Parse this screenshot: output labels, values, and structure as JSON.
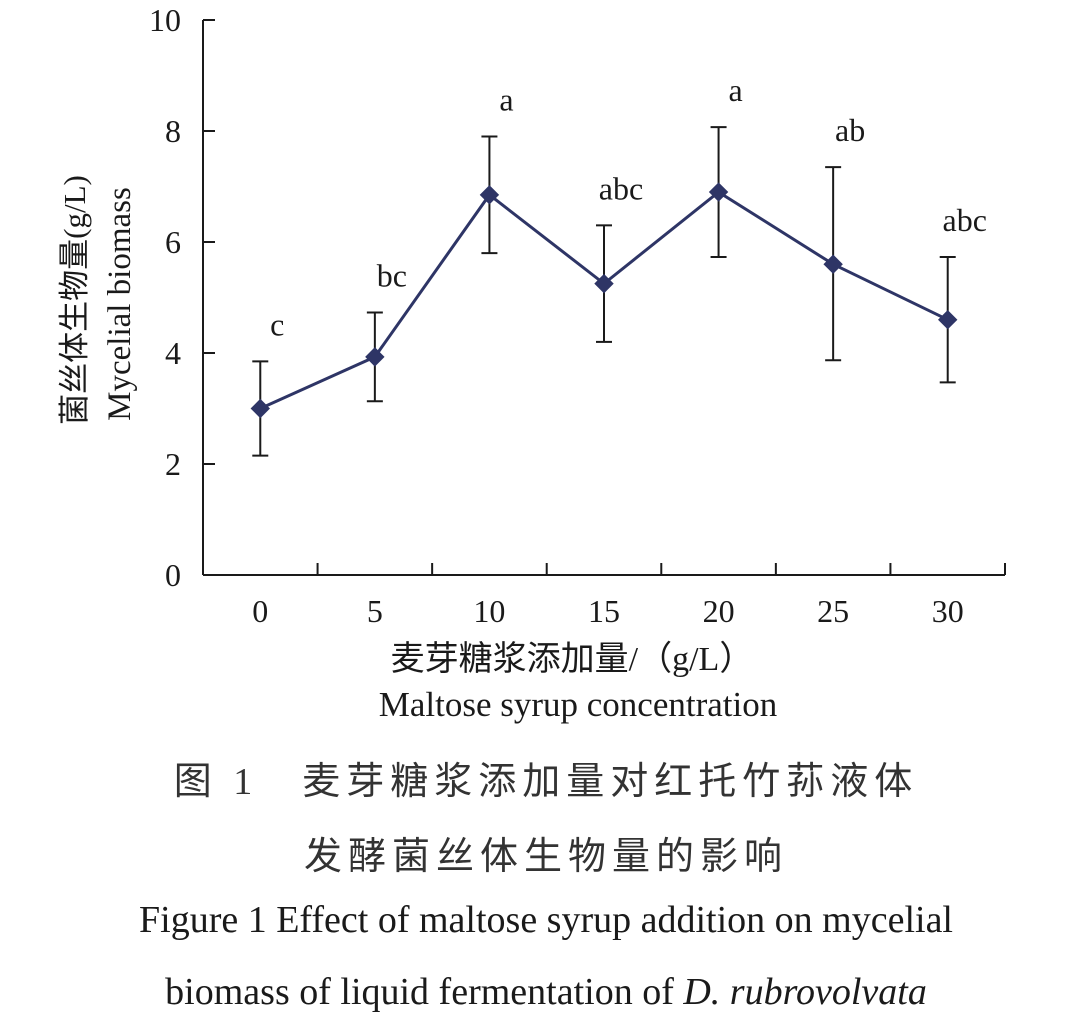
{
  "chart_data": {
    "type": "line",
    "x": [
      0,
      5,
      10,
      15,
      20,
      25,
      30
    ],
    "y": [
      3.0,
      3.93,
      6.85,
      5.25,
      6.9,
      5.6,
      4.6
    ],
    "error_upper": [
      3.85,
      4.73,
      7.9,
      6.3,
      8.07,
      7.35,
      5.73
    ],
    "error_lower": [
      2.15,
      3.13,
      5.8,
      4.2,
      5.73,
      3.87,
      3.47
    ],
    "significance_labels": [
      "c",
      "bc",
      "a",
      "abc",
      "a",
      "ab",
      "abc"
    ],
    "ylabel_zh": "菌丝体生物量(g/L)",
    "ylabel_en": "Mycelial biomass",
    "xlabel_zh": "麦芽糖浆添加量/（g/L）",
    "xlabel_en": "Maltose syrup concentration",
    "yticks": [
      "0",
      "2",
      "4",
      "6",
      "8",
      "10"
    ],
    "xticks": [
      "0",
      "5",
      "10",
      "15",
      "20",
      "25",
      "30"
    ],
    "ylim": [
      0,
      10
    ],
    "grid": false,
    "line_color": "#2e3566",
    "marker": "diamond"
  },
  "caption": {
    "zh_line1": "图 1　麦芽糖浆添加量对红托竹荪液体",
    "zh_line2": "发酵菌丝体生物量的影响",
    "en_line1": "Figure 1  Effect of maltose syrup addition on mycelial",
    "en_line2_prefix": "biomass of liquid fermentation of ",
    "en_line2_species": "D. rubrovolvata"
  }
}
